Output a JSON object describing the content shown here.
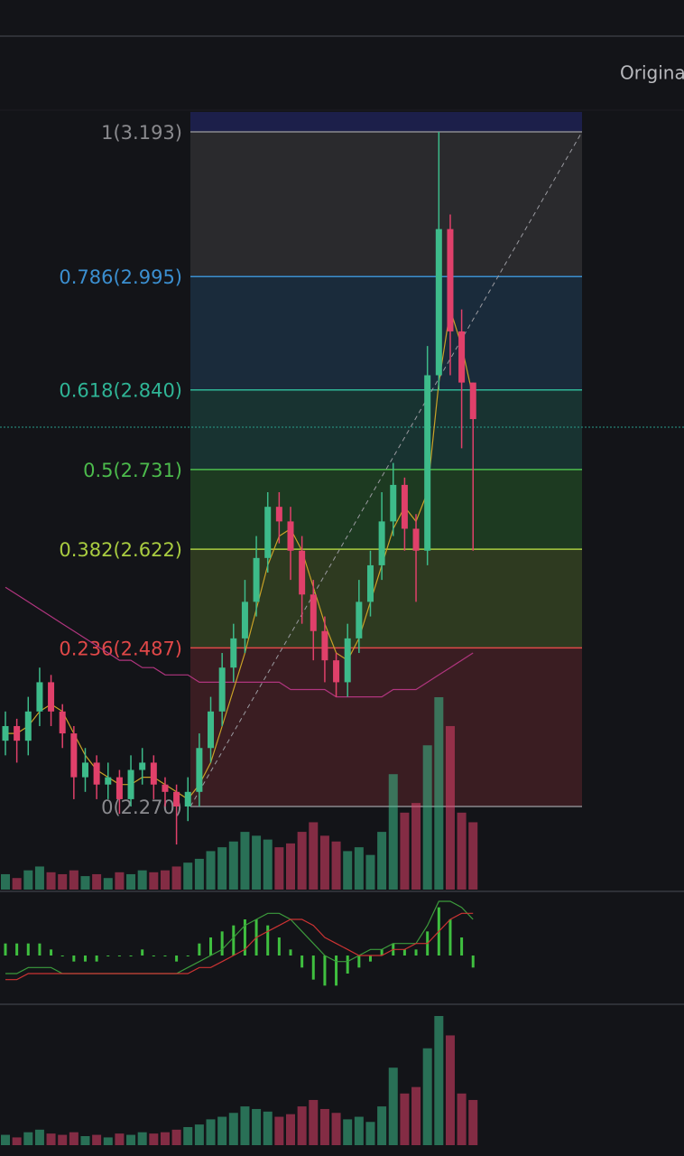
{
  "header": {
    "button": "Origina"
  },
  "chart_data": {
    "type": "candlestick",
    "open": [
      2.36,
      2.38,
      2.36,
      2.4,
      2.44,
      2.4,
      2.37,
      2.31,
      2.33,
      2.3,
      2.31,
      2.28,
      2.32,
      2.33,
      2.3,
      2.29,
      2.27,
      2.29,
      2.35,
      2.4,
      2.46,
      2.5,
      2.55,
      2.61,
      2.68,
      2.66,
      2.62,
      2.56,
      2.51,
      2.47,
      2.44,
      2.5,
      2.55,
      2.6,
      2.66,
      2.71,
      2.65,
      2.62,
      2.86,
      3.06,
      2.92,
      2.85
    ],
    "high": [
      2.4,
      2.39,
      2.42,
      2.46,
      2.45,
      2.41,
      2.38,
      2.35,
      2.34,
      2.33,
      2.32,
      2.34,
      2.35,
      2.34,
      2.31,
      2.3,
      2.31,
      2.37,
      2.42,
      2.48,
      2.52,
      2.58,
      2.64,
      2.7,
      2.7,
      2.68,
      2.64,
      2.58,
      2.53,
      2.48,
      2.52,
      2.58,
      2.62,
      2.7,
      2.74,
      2.72,
      2.67,
      2.9,
      3.193,
      3.08,
      2.95,
      2.85
    ],
    "low": [
      2.34,
      2.33,
      2.34,
      2.38,
      2.38,
      2.35,
      2.28,
      2.29,
      2.28,
      2.28,
      2.26,
      2.27,
      2.3,
      2.28,
      2.27,
      2.218,
      2.25,
      2.27,
      2.33,
      2.38,
      2.44,
      2.48,
      2.53,
      2.59,
      2.63,
      2.58,
      2.52,
      2.47,
      2.44,
      2.42,
      2.42,
      2.48,
      2.53,
      2.58,
      2.64,
      2.62,
      2.55,
      2.6,
      2.84,
      2.86,
      2.76,
      2.62
    ],
    "close": [
      2.38,
      2.36,
      2.4,
      2.44,
      2.4,
      2.37,
      2.31,
      2.33,
      2.3,
      2.31,
      2.28,
      2.32,
      2.33,
      2.3,
      2.29,
      2.27,
      2.29,
      2.35,
      2.4,
      2.46,
      2.5,
      2.55,
      2.61,
      2.68,
      2.66,
      2.62,
      2.56,
      2.51,
      2.47,
      2.44,
      2.5,
      2.55,
      2.6,
      2.66,
      2.71,
      2.65,
      2.62,
      2.86,
      3.06,
      2.92,
      2.85,
      2.8
    ],
    "up_color": "#3dbb8a",
    "down_color": "#e0406a",
    "volume": [
      8,
      6,
      10,
      12,
      9,
      8,
      10,
      7,
      8,
      6,
      9,
      8,
      10,
      9,
      10,
      12,
      14,
      16,
      20,
      22,
      25,
      30,
      28,
      26,
      22,
      24,
      30,
      35,
      28,
      25,
      20,
      22,
      18,
      30,
      60,
      40,
      45,
      75,
      100,
      85,
      40,
      35
    ],
    "ma_lines": [
      {
        "color": "#b0357e",
        "values": [
          2.57,
          2.56,
          2.55,
          2.54,
          2.53,
          2.52,
          2.51,
          2.5,
          2.49,
          2.48,
          2.47,
          2.47,
          2.46,
          2.46,
          2.45,
          2.45,
          2.45,
          2.44,
          2.44,
          2.44,
          2.44,
          2.44,
          2.44,
          2.44,
          2.44,
          2.43,
          2.43,
          2.43,
          2.43,
          2.42,
          2.42,
          2.42,
          2.42,
          2.42,
          2.43,
          2.43,
          2.43,
          2.44,
          2.45,
          2.46,
          2.47,
          2.48
        ]
      },
      {
        "color": "#c9a227",
        "values": [
          2.37,
          2.37,
          2.38,
          2.4,
          2.41,
          2.4,
          2.37,
          2.34,
          2.32,
          2.31,
          2.3,
          2.3,
          2.31,
          2.31,
          2.3,
          2.29,
          2.28,
          2.3,
          2.33,
          2.38,
          2.43,
          2.48,
          2.54,
          2.6,
          2.64,
          2.65,
          2.62,
          2.57,
          2.52,
          2.48,
          2.47,
          2.5,
          2.55,
          2.6,
          2.65,
          2.68,
          2.66,
          2.7,
          2.85,
          2.95,
          2.9,
          2.83
        ]
      }
    ],
    "macd": {
      "hist_color": "#3fbf3f",
      "line_color": "#3c9a3c",
      "signal_color": "#cc3333",
      "hist": [
        2,
        2,
        2,
        2,
        1,
        0,
        -1,
        -1,
        -1,
        0,
        0,
        0,
        1,
        0,
        0,
        -1,
        0,
        2,
        3,
        4,
        5,
        6,
        6,
        5,
        3,
        1,
        -2,
        -4,
        -5,
        -5,
        -3,
        -2,
        -1,
        1,
        2,
        1,
        1,
        4,
        8,
        6,
        3,
        -2
      ],
      "line": [
        -3,
        -3,
        -2,
        -2,
        -2,
        -3,
        -3,
        -3,
        -3,
        -3,
        -3,
        -3,
        -3,
        -3,
        -3,
        -3,
        -2,
        -1,
        0,
        1,
        3,
        5,
        6,
        7,
        7,
        6,
        4,
        2,
        0,
        -1,
        -1,
        0,
        1,
        1,
        2,
        2,
        2,
        5,
        9,
        9,
        8,
        6
      ],
      "signal": [
        -4,
        -4,
        -3,
        -3,
        -3,
        -3,
        -3,
        -3,
        -3,
        -3,
        -3,
        -3,
        -3,
        -3,
        -3,
        -3,
        -3,
        -2,
        -2,
        -1,
        0,
        1,
        3,
        4,
        5,
        6,
        6,
        5,
        3,
        2,
        1,
        0,
        0,
        0,
        1,
        1,
        2,
        2,
        4,
        6,
        7,
        7
      ]
    },
    "last_price": 2.789,
    "fib_levels": [
      {
        "label": "1(3.193)",
        "value": 3.193,
        "color": "#8a8a8e",
        "fill": "#2a2a2d"
      },
      {
        "label": "0.786(2.995)",
        "value": 2.995,
        "color": "#3b8fd0",
        "fill": "#1a2b3b"
      },
      {
        "label": "0.618(2.840)",
        "value": 2.84,
        "color": "#2fb596",
        "fill": "#183331"
      },
      {
        "label": "0.5(2.731)",
        "value": 2.731,
        "color": "#4cbb4c",
        "fill": "#1d3a21"
      },
      {
        "label": "0.382(2.622)",
        "value": 2.622,
        "color": "#a9cc40",
        "fill": "#2e3a20"
      },
      {
        "label": "0.236(2.487)",
        "value": 2.487,
        "color": "#e04848",
        "fill": "#3a1d22"
      },
      {
        "label": "0(2.270)",
        "value": 2.27,
        "color": "#8a8a8e"
      }
    ]
  }
}
